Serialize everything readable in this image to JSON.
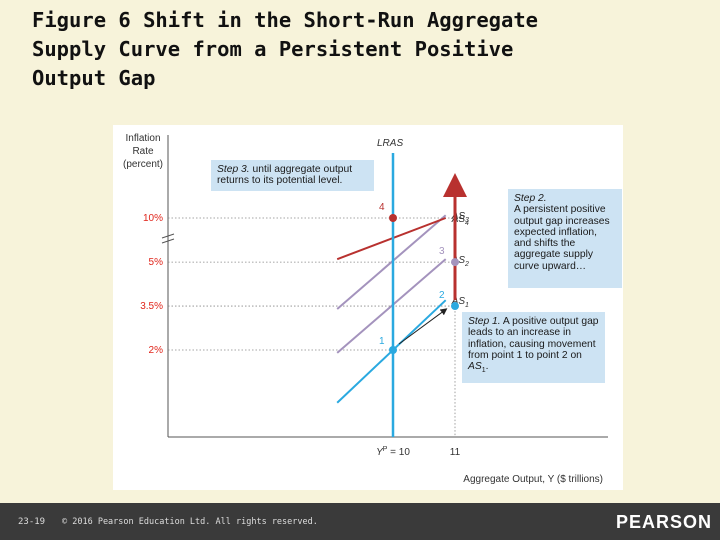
{
  "slide": {
    "title_lines": [
      "Figure 6 Shift in the Short-Run Aggregate",
      "Supply Curve from a Persistent Positive",
      "Output Gap"
    ],
    "page_number": "23-19",
    "copyright": "© 2016 Pearson Education Ltd. All rights reserved.",
    "brand": "PEARSON"
  },
  "chart_data": {
    "type": "line",
    "ylabel_lines": [
      "Inflation",
      "Rate",
      "(percent)"
    ],
    "xlabel": "Aggregate Output, Y ($ trillions)",
    "x_ticks": [
      {
        "label": "Y^P = 10",
        "label_main": "Y",
        "label_sup": "P",
        "label_rest": " = 10",
        "value": 10
      },
      {
        "label": "11",
        "value": 11
      }
    ],
    "y_ticks": [
      {
        "label": "2%",
        "value": 2
      },
      {
        "label": "3.5%",
        "value": 3.5
      },
      {
        "label": "5%",
        "value": 5
      },
      {
        "label": "10%",
        "value": 10
      }
    ],
    "axis_break": true,
    "lras": {
      "name": "LRAS",
      "x": 10,
      "color": "#2aa9e0"
    },
    "series": [
      {
        "name": "AS1",
        "label_main": "AS",
        "label_sub": "1",
        "color": "#2aa9e0",
        "points": [
          [
            9.1,
            0.2
          ],
          [
            10.85,
            3.7
          ]
        ]
      },
      {
        "name": "AS2",
        "label_main": "AS",
        "label_sub": "2",
        "color": "#a493bd",
        "points": [
          [
            9.1,
            1.9
          ],
          [
            10.85,
            5.1
          ]
        ]
      },
      {
        "name": "AS3",
        "label_main": "AS",
        "label_sub": "3",
        "color": "#a493bd",
        "points": [
          [
            9.1,
            3.4
          ],
          [
            10.85,
            6.6
          ]
        ]
      },
      {
        "name": "AS4",
        "label_main": "AS",
        "label_sub": "4",
        "color": "#b8312f",
        "points": [
          [
            9.1,
            5.1
          ],
          [
            10.85,
            11.1
          ]
        ]
      }
    ],
    "points": [
      {
        "label": "1",
        "x": 10,
        "y": 2,
        "color": "#2aa9e0"
      },
      {
        "label": "2",
        "x": 11,
        "y": 3.5,
        "color": "#2aa9e0"
      },
      {
        "label": "3",
        "x": 11,
        "y": 5,
        "color": "#a493bd"
      },
      {
        "label": "4",
        "x": 10,
        "y": 10,
        "color": "#b8312f"
      }
    ],
    "callouts": {
      "step1_title": "Step 1.",
      "step1_body": " A positive output gap leads to an increase in inflation, causing movement from point 1 to point 2 on ",
      "step1_as": "AS",
      "step1_as_sub": "1",
      "step1_end": ".",
      "step2_title": "Step 2.",
      "step2_body": "A persistent positive output gap increases expected inflation, and shifts the aggregate supply curve upward…",
      "step3_title": "Step 3.",
      "step3_body": " until aggregate output returns to its potential level."
    }
  }
}
